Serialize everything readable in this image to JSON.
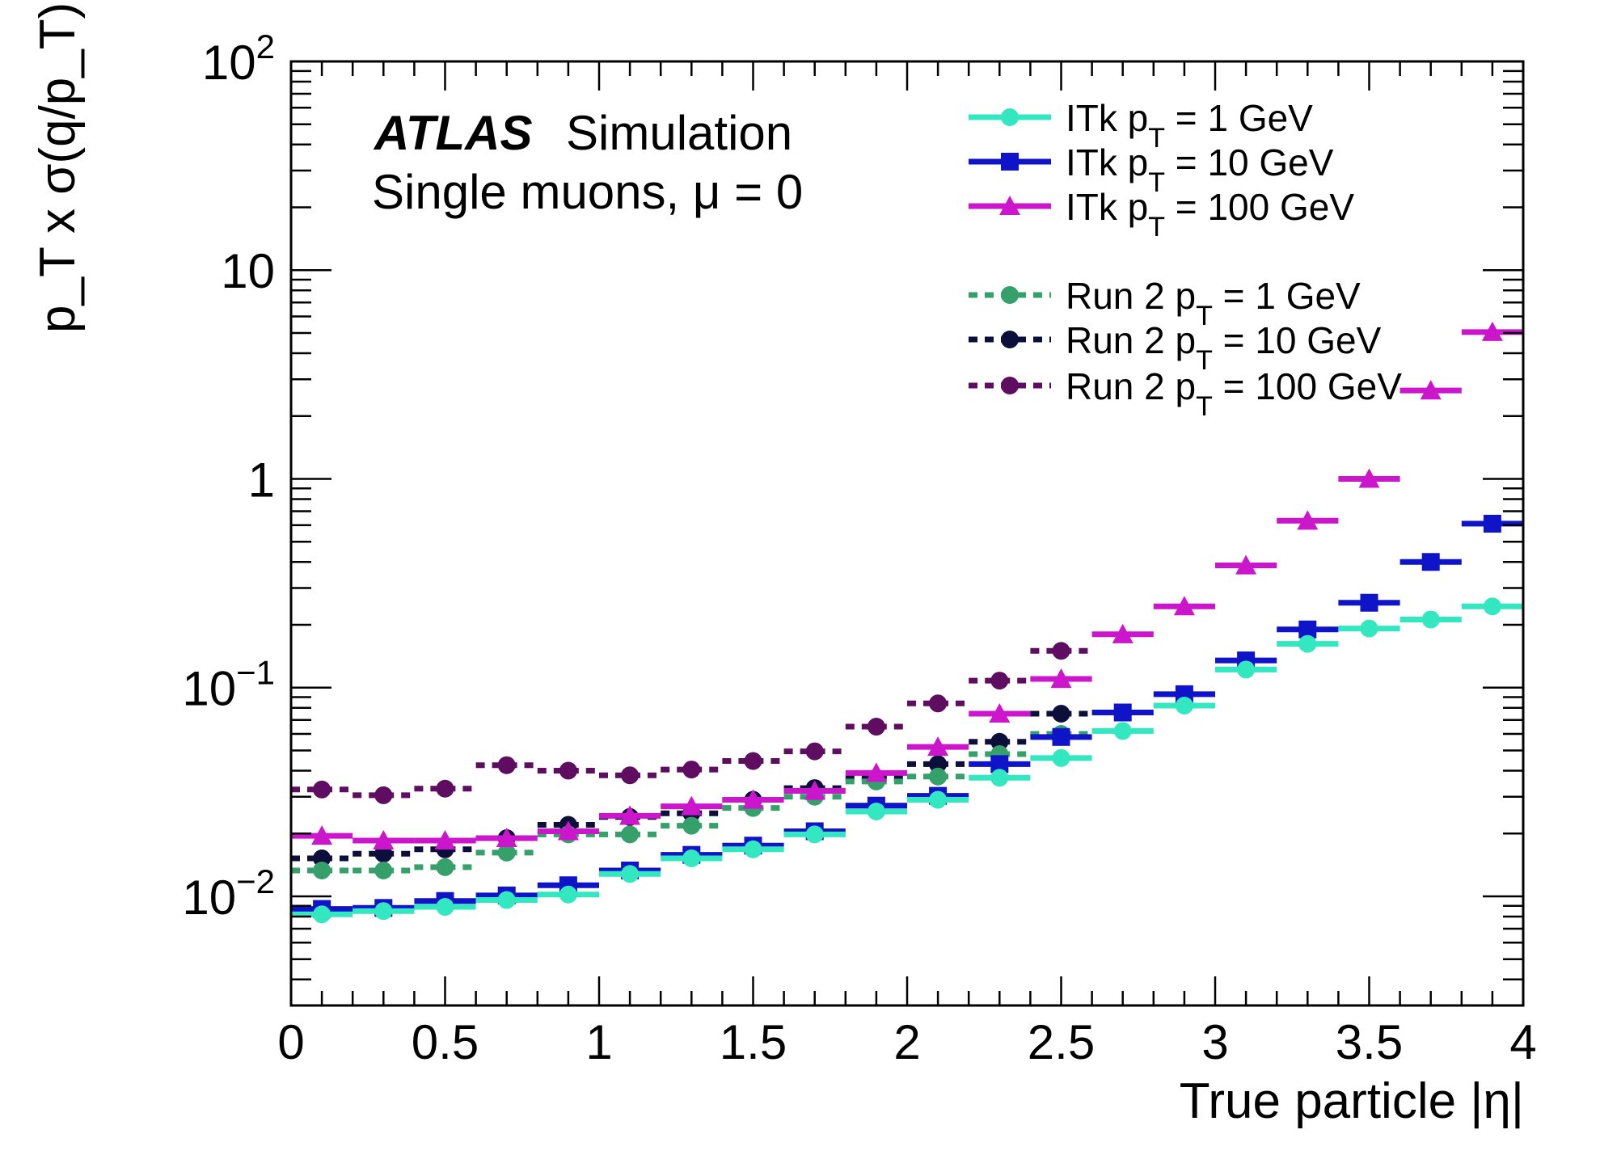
{
  "chart_data": {
    "type": "scatter",
    "title": "",
    "xlabel": "True particle |η|",
    "ylabel": "p_T x σ(q/p_T)",
    "xlim": [
      0,
      4
    ],
    "ylim": [
      0.003,
      100
    ],
    "yscale": "log",
    "bin_width": 0.2,
    "x_ticks": [
      0,
      0.5,
      1,
      1.5,
      2,
      2.5,
      3,
      3.5,
      4
    ],
    "x_tick_labels": [
      "0",
      "0.5",
      "1",
      "1.5",
      "2",
      "2.5",
      "3",
      "3.5",
      "4"
    ],
    "y_ticks": [
      0.01,
      0.1,
      1,
      10,
      100
    ],
    "y_tick_labels": [
      {
        "base": "10",
        "exp": "−2"
      },
      {
        "base": "10",
        "exp": "−1"
      },
      {
        "base": "1",
        "exp": ""
      },
      {
        "base": "10",
        "exp": ""
      },
      {
        "base": "10",
        "exp": "2"
      }
    ],
    "annotations": {
      "experiment": "ATLAS",
      "label": "Simulation",
      "subtitle": "Single muons, μ = 0"
    },
    "legend_position": "top-right",
    "series": [
      {
        "name": "ITk  p_T = 1 GeV",
        "color": "#33e8c0",
        "marker": "circle",
        "style": "solid",
        "x": [
          0.1,
          0.3,
          0.5,
          0.7,
          0.9,
          1.1,
          1.3,
          1.5,
          1.7,
          1.9,
          2.1,
          2.3,
          2.5,
          2.7,
          2.9,
          3.1,
          3.3,
          3.5,
          3.7,
          3.9
        ],
        "values": [
          0.0082,
          0.0085,
          0.0089,
          0.0096,
          0.0102,
          0.0128,
          0.0152,
          0.0168,
          0.0198,
          0.0255,
          0.029,
          0.037,
          0.046,
          0.062,
          0.082,
          0.122,
          0.162,
          0.192,
          0.212,
          0.245
        ]
      },
      {
        "name": "ITk  p_T = 10 GeV",
        "color": "#0f14c8",
        "marker": "square",
        "style": "solid",
        "x": [
          0.1,
          0.3,
          0.5,
          0.7,
          0.9,
          1.1,
          1.3,
          1.5,
          1.7,
          1.9,
          2.1,
          2.3,
          2.5,
          2.7,
          2.9,
          3.1,
          3.3,
          3.5,
          3.7,
          3.9
        ],
        "values": [
          0.0087,
          0.0088,
          0.0095,
          0.0101,
          0.0113,
          0.0133,
          0.0158,
          0.0175,
          0.0205,
          0.0272,
          0.0303,
          0.043,
          0.058,
          0.076,
          0.093,
          0.135,
          0.19,
          0.255,
          0.4,
          0.61
        ]
      },
      {
        "name": "ITk  p_T = 100 GeV",
        "color": "#cc16cc",
        "marker": "triangle",
        "style": "solid",
        "x": [
          0.1,
          0.3,
          0.5,
          0.7,
          0.9,
          1.1,
          1.3,
          1.5,
          1.7,
          1.9,
          2.1,
          2.3,
          2.5,
          2.7,
          2.9,
          3.1,
          3.3,
          3.5,
          3.7,
          3.9
        ],
        "values": [
          0.0195,
          0.0185,
          0.0185,
          0.019,
          0.0205,
          0.0243,
          0.027,
          0.029,
          0.032,
          0.039,
          0.052,
          0.075,
          0.11,
          0.18,
          0.245,
          0.385,
          0.63,
          1.0,
          2.65,
          5.05
        ]
      },
      {
        "name": "Run 2 p_T = 1 GeV",
        "color": "#36a06a",
        "marker": "circle",
        "style": "dashed",
        "x": [
          0.1,
          0.3,
          0.5,
          0.7,
          0.9,
          1.1,
          1.3,
          1.5,
          1.7,
          1.9,
          2.1,
          2.3,
          2.5
        ],
        "values": [
          0.0133,
          0.0133,
          0.0138,
          0.0162,
          0.0198,
          0.0198,
          0.0218,
          0.0265,
          0.03,
          0.0355,
          0.0375,
          0.048,
          0.06
        ]
      },
      {
        "name": "Run 2 p_T = 10 GeV",
        "color": "#0b0f3a",
        "marker": "circle",
        "style": "dashed",
        "x": [
          0.1,
          0.3,
          0.5,
          0.7,
          0.9,
          1.1,
          1.3,
          1.5,
          1.7,
          1.9,
          2.1,
          2.3,
          2.5
        ],
        "values": [
          0.0152,
          0.016,
          0.0168,
          0.019,
          0.022,
          0.024,
          0.025,
          0.029,
          0.033,
          0.037,
          0.043,
          0.055,
          0.075
        ]
      },
      {
        "name": "Run 2 p_T = 100 GeV",
        "color": "#5e0d60",
        "marker": "circle",
        "style": "dashed",
        "x": [
          0.1,
          0.3,
          0.5,
          0.7,
          0.9,
          1.1,
          1.3,
          1.5,
          1.7,
          1.9,
          2.1,
          2.3,
          2.5
        ],
        "values": [
          0.0325,
          0.0305,
          0.0328,
          0.0425,
          0.04,
          0.038,
          0.0405,
          0.0445,
          0.0495,
          0.065,
          0.084,
          0.108,
          0.15
        ]
      }
    ],
    "legend": [
      {
        "prefix": "ITk  p",
        "sub": "T",
        "suffix": " = 1 GeV"
      },
      {
        "prefix": "ITk  p",
        "sub": "T",
        "suffix": " = 10 GeV"
      },
      {
        "prefix": "ITk  p",
        "sub": "T",
        "suffix": " = 100 GeV"
      },
      {
        "prefix": "Run 2 p",
        "sub": "T",
        "suffix": " = 1 GeV"
      },
      {
        "prefix": "Run 2 p",
        "sub": "T",
        "suffix": " = 10 GeV"
      },
      {
        "prefix": "Run 2 p",
        "sub": "T",
        "suffix": " = 100 GeV"
      }
    ]
  }
}
